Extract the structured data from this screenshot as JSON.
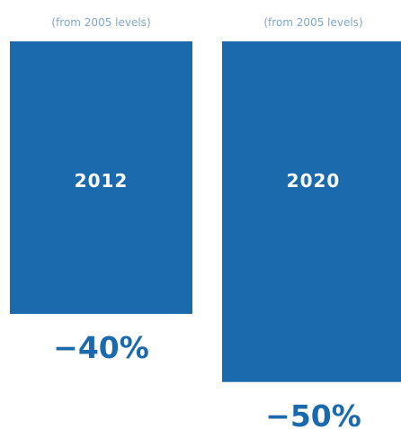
{
  "chart_data": {
    "type": "bar",
    "categories": [
      "2012",
      "2020"
    ],
    "values": [
      -40,
      -50
    ],
    "value_labels": [
      "−40%",
      "−50%"
    ],
    "subtitles": [
      "(from 2005 levels)",
      "(from 2005 levels)"
    ],
    "ylim": [
      0,
      -60
    ],
    "grid": false,
    "legend": "none",
    "colors": {
      "bar": "#1a6aad",
      "value_text": "#1a6aad",
      "subtitle_text": "#7fa6cc",
      "category_text": "#ffffff"
    }
  }
}
